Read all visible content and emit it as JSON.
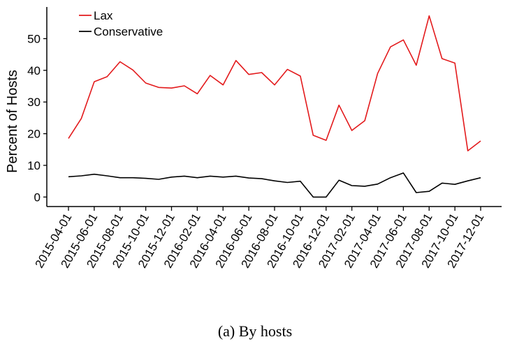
{
  "caption": "(a) By hosts",
  "chart_data": {
    "type": "line",
    "xlabel": "",
    "ylabel": "Percent of Hosts",
    "ylim": [
      -3,
      60
    ],
    "yticks": [
      0,
      10,
      20,
      30,
      40,
      50
    ],
    "xtick_labels": [
      "2015-04-01",
      "2015-06-01",
      "2015-08-01",
      "2015-10-01",
      "2015-12-01",
      "2016-02-01",
      "2016-04-01",
      "2016-06-01",
      "2016-08-01",
      "2016-10-01",
      "2016-12-01",
      "2017-02-01",
      "2017-04-01",
      "2017-06-01",
      "2017-08-01",
      "2017-10-01",
      "2017-12-01"
    ],
    "x": [
      "2015-04-01",
      "2015-05-01",
      "2015-06-01",
      "2015-07-01",
      "2015-08-01",
      "2015-09-01",
      "2015-10-01",
      "2015-11-01",
      "2015-12-01",
      "2016-01-01",
      "2016-02-01",
      "2016-03-01",
      "2016-04-01",
      "2016-05-01",
      "2016-06-01",
      "2016-07-01",
      "2016-08-01",
      "2016-09-01",
      "2016-10-01",
      "2016-11-01",
      "2016-12-01",
      "2017-01-01",
      "2017-02-01",
      "2017-03-01",
      "2017-04-01",
      "2017-05-01",
      "2017-06-01",
      "2017-07-01",
      "2017-08-01",
      "2017-09-01",
      "2017-10-01",
      "2017-11-01",
      "2017-12-01"
    ],
    "series": [
      {
        "name": "Lax",
        "color": "#e31a1c",
        "values": [
          18.5,
          24.8,
          36.4,
          38.0,
          42.7,
          40.1,
          36.0,
          34.6,
          34.4,
          35.1,
          32.6,
          38.4,
          35.4,
          43.1,
          38.7,
          39.3,
          35.4,
          40.3,
          38.2,
          19.5,
          17.9,
          29.0,
          21.0,
          24.1,
          39.0,
          47.4,
          49.6,
          41.6,
          57.2,
          43.7,
          42.3,
          14.6,
          17.7
        ]
      },
      {
        "name": "Conservative",
        "color": "#000000",
        "values": [
          6.4,
          6.7,
          7.2,
          6.7,
          6.1,
          6.1,
          5.9,
          5.6,
          6.3,
          6.6,
          6.1,
          6.6,
          6.3,
          6.6,
          6.0,
          5.8,
          5.1,
          4.6,
          5.0,
          0.0,
          0.0,
          5.3,
          3.6,
          3.4,
          4.1,
          6.1,
          7.6,
          1.4,
          1.8,
          4.4,
          4.0,
          5.1,
          6.1
        ]
      }
    ],
    "legend": {
      "placement": "top-left"
    },
    "grid": false
  }
}
